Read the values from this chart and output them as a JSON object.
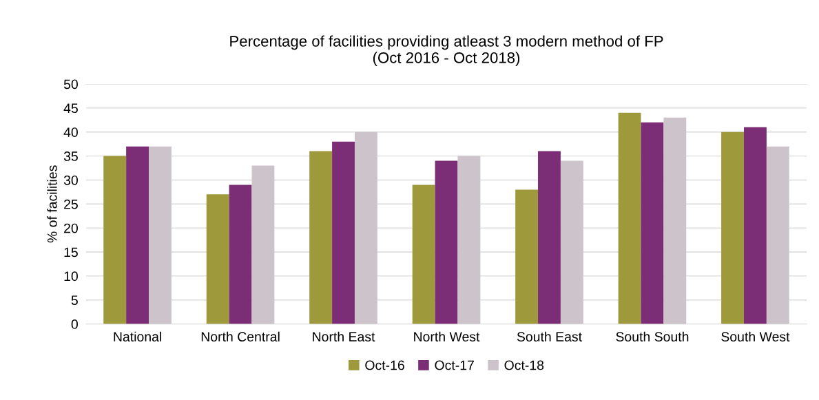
{
  "chart_data": {
    "type": "bar",
    "title": "Percentage of facilities providing atleast 3 modern method of FP\n(Oct 2016 - Oct 2018)",
    "ylabel": "% of facilities",
    "categories": [
      "National",
      "North Central",
      "North East",
      "North West",
      "South East",
      "South South",
      "South West"
    ],
    "series": [
      {
        "name": "Oct-16",
        "color": "#9e9a3c",
        "values": [
          35,
          27,
          36,
          29,
          28,
          44,
          40
        ]
      },
      {
        "name": "Oct-17",
        "color": "#7b2d75",
        "values": [
          37,
          29,
          38,
          34,
          36,
          42,
          41
        ]
      },
      {
        "name": "Oct-18",
        "color": "#cdc3cb",
        "values": [
          37,
          33,
          40,
          35,
          34,
          43,
          37
        ]
      }
    ],
    "ylim": [
      0,
      50
    ],
    "yticks": [
      0,
      5,
      10,
      15,
      20,
      25,
      30,
      35,
      40,
      45,
      50
    ],
    "grid": "y",
    "legend": "bottom"
  }
}
